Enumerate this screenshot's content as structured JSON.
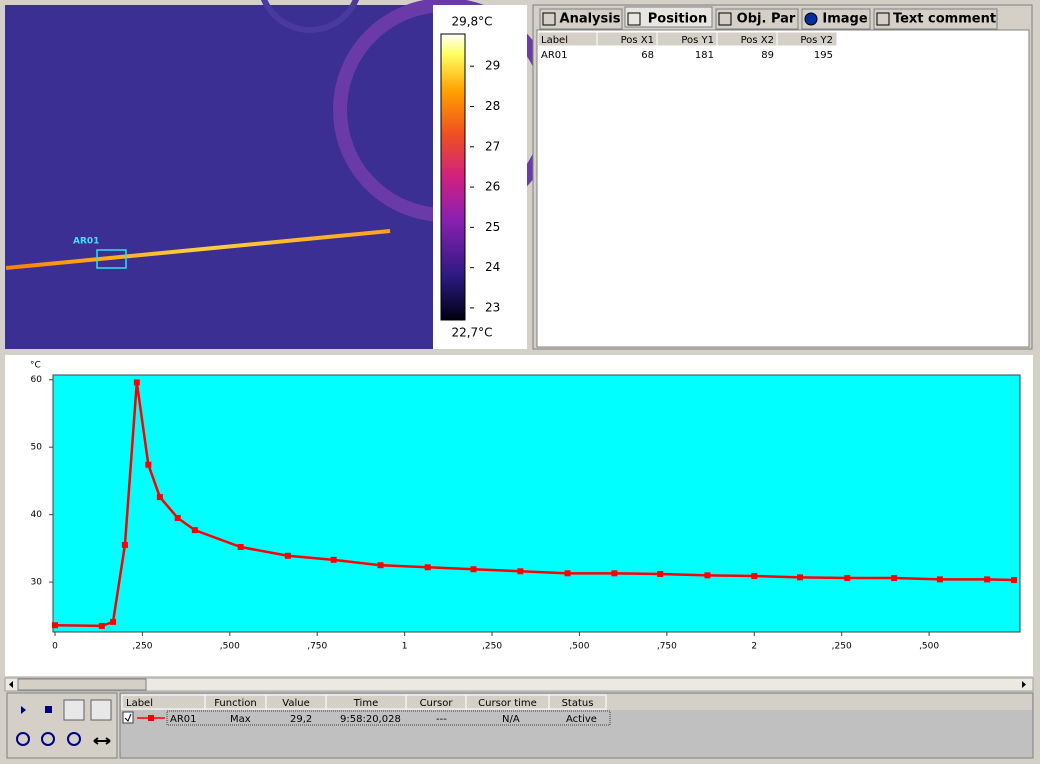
{
  "thermal_image": {
    "area_label": "AR01",
    "scale": {
      "lim": [
        22.7,
        29.8
      ],
      "ticks": [
        23,
        24,
        25,
        26,
        27,
        28,
        29
      ],
      "max_label": "29,8°C",
      "min_label": "22,7°C"
    }
  },
  "tabs": [
    "Analysis",
    "Position",
    "Obj. Par",
    "Image",
    "Text comment"
  ],
  "position_table": {
    "columns": [
      "Label",
      "Pos X1",
      "Pos Y1",
      "Pos X2",
      "Pos Y2"
    ],
    "rows": [
      [
        "AR01",
        68,
        181,
        89,
        195
      ]
    ]
  },
  "chart_data": {
    "type": "line",
    "y_unit": "°C",
    "x": [
      0,
      0.134,
      0.166,
      0.2,
      0.234,
      0.267,
      0.3,
      0.351,
      0.4,
      0.531,
      0.666,
      0.797,
      0.931,
      1.066,
      1.197,
      1.331,
      1.466,
      1.6,
      1.731,
      1.866,
      2.0,
      2.131,
      2.266,
      2.4,
      2.531,
      2.666,
      2.743
    ],
    "series": [
      {
        "name": "AR01",
        "color": "#ff0000",
        "values": [
          23.6,
          23.5,
          24.1,
          35.5,
          59.6,
          47.4,
          42.6,
          39.5,
          37.7,
          35.2,
          33.9,
          33.3,
          32.5,
          32.2,
          31.9,
          31.6,
          31.3,
          31.3,
          31.2,
          31.0,
          30.9,
          30.7,
          30.6,
          30.6,
          30.4,
          30.4,
          30.3
        ]
      }
    ],
    "xlim": [
      0,
      2.76
    ],
    "ylim": [
      22.6,
      60.7
    ],
    "xticks": [
      0,
      {
        "value": 0.25,
        "label": ",250"
      },
      {
        "value": 0.5,
        "label": ",500"
      },
      {
        "value": 0.75,
        "label": ",750"
      },
      1,
      {
        "value": 1.25,
        "label": ",250"
      },
      {
        "value": 1.5,
        "label": ",500"
      },
      {
        "value": 1.75,
        "label": ",750"
      },
      2,
      {
        "value": 2.25,
        "label": ",250"
      },
      {
        "value": 2.5,
        "label": ",500"
      }
    ],
    "yticks": [
      30,
      40,
      50,
      60
    ],
    "background": "#00ffff"
  },
  "legend_table": {
    "columns": [
      "Label",
      "Function",
      "Value",
      "Time",
      "Cursor",
      "Cursor time",
      "Status"
    ],
    "rows": [
      [
        "AR01",
        "Max",
        "29,2",
        "9:58:20,028",
        "---",
        "N/A",
        "Active"
      ]
    ]
  }
}
